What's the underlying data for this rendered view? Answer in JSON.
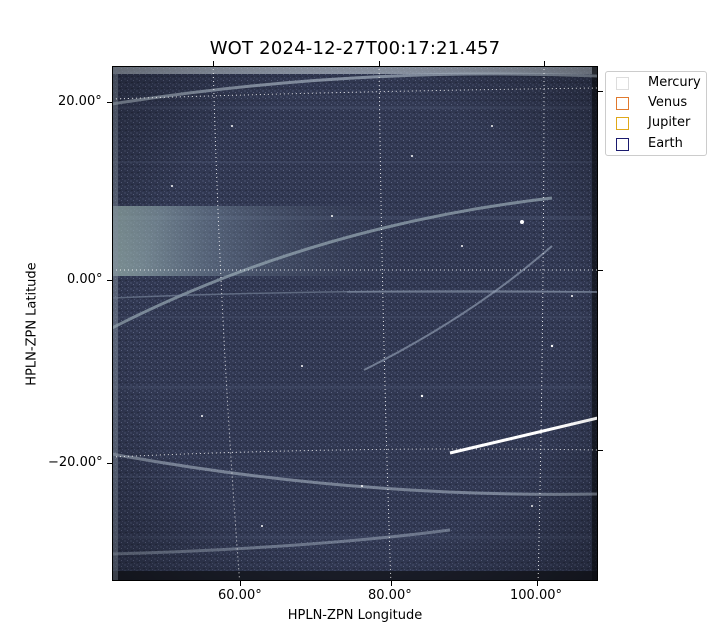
{
  "title": "WOT 2024-12-27T00:17:21.457",
  "axes": {
    "xlabel": "HPLN-ZPN Longitude",
    "ylabel": "HPLN-ZPN Latitude",
    "x_ticks": [
      "60.00°",
      "80.00°",
      "100.00°"
    ],
    "y_ticks": [
      "20.00°",
      "0.00°",
      "−20.00°"
    ]
  },
  "legend": {
    "items": [
      {
        "label": "Mercury",
        "color": "#dddddd"
      },
      {
        "label": "Venus",
        "color": "#e07a2e"
      },
      {
        "label": "Jupiter",
        "color": "#e0a81a"
      },
      {
        "label": "Earth",
        "color": "#1a1a6e"
      }
    ]
  },
  "image": {
    "background": "#2b3148",
    "grid": "dotted-white"
  }
}
